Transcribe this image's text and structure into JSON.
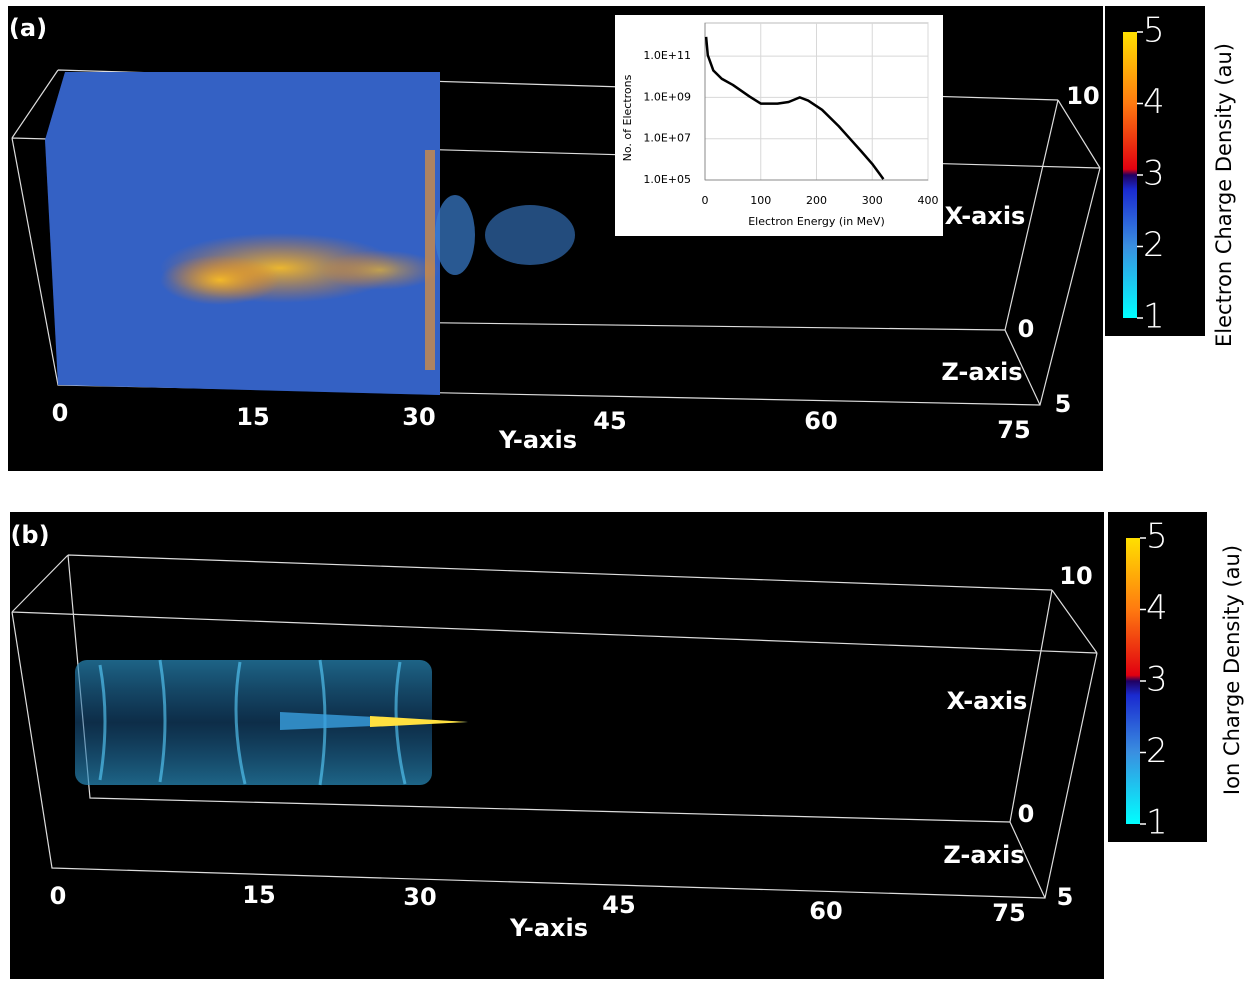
{
  "panels": [
    {
      "label": "(a)",
      "y_axis_title": "Y-axis",
      "x_axis_title": "X-axis",
      "z_axis_title": "Z-axis",
      "y_ticks": [
        0,
        15,
        30,
        45,
        60,
        75
      ],
      "x_ticks": [
        10,
        0
      ],
      "z_ticks": [
        5
      ],
      "colorbar": {
        "label": "Electron Charge Density (au)",
        "range": [
          1,
          5
        ],
        "ticks": [
          1,
          2,
          3,
          4,
          5
        ]
      }
    },
    {
      "label": "(b)",
      "y_axis_title": "Y-axis",
      "x_axis_title": "X-axis",
      "z_axis_title": "Z-axis",
      "y_ticks": [
        0,
        15,
        30,
        45,
        60,
        75
      ],
      "x_ticks": [
        10,
        0
      ],
      "z_ticks": [
        5
      ],
      "colorbar": {
        "label": "Ion Charge Density (au)",
        "range": [
          1,
          5
        ],
        "ticks": [
          1,
          2,
          3,
          4,
          5
        ]
      }
    }
  ],
  "chart_data": {
    "type": "line",
    "x_label": "Electron Energy (in MeV)",
    "y_label": "No. of Electrons",
    "x": [
      2,
      5,
      15,
      30,
      50,
      80,
      100,
      130,
      150,
      170,
      185,
      210,
      240,
      260,
      280,
      300,
      315,
      320
    ],
    "series": [
      {
        "color": "#000000",
        "values": [
          850000000000,
          110000000000,
          20000000000,
          8000000000,
          4000000000,
          1100000000,
          500000000,
          500000000,
          600000000,
          1000000000,
          700000000,
          250000000,
          40000000,
          10000000,
          2500000,
          600000,
          170000,
          110000
        ]
      }
    ],
    "xlim": [
      0,
      400
    ],
    "xticks": [
      0,
      100,
      200,
      300,
      400
    ],
    "ylim": [
      100000,
      4000000000000
    ],
    "log_y": true,
    "grid": true,
    "yticks": [
      {
        "value": 100000,
        "label": "1.0E+05"
      },
      {
        "value": 10000000,
        "label": "1.0E+07"
      },
      {
        "value": 1000000000,
        "label": "1.0E+09"
      },
      {
        "value": 100000000000,
        "label": "1.0E+11"
      }
    ]
  }
}
